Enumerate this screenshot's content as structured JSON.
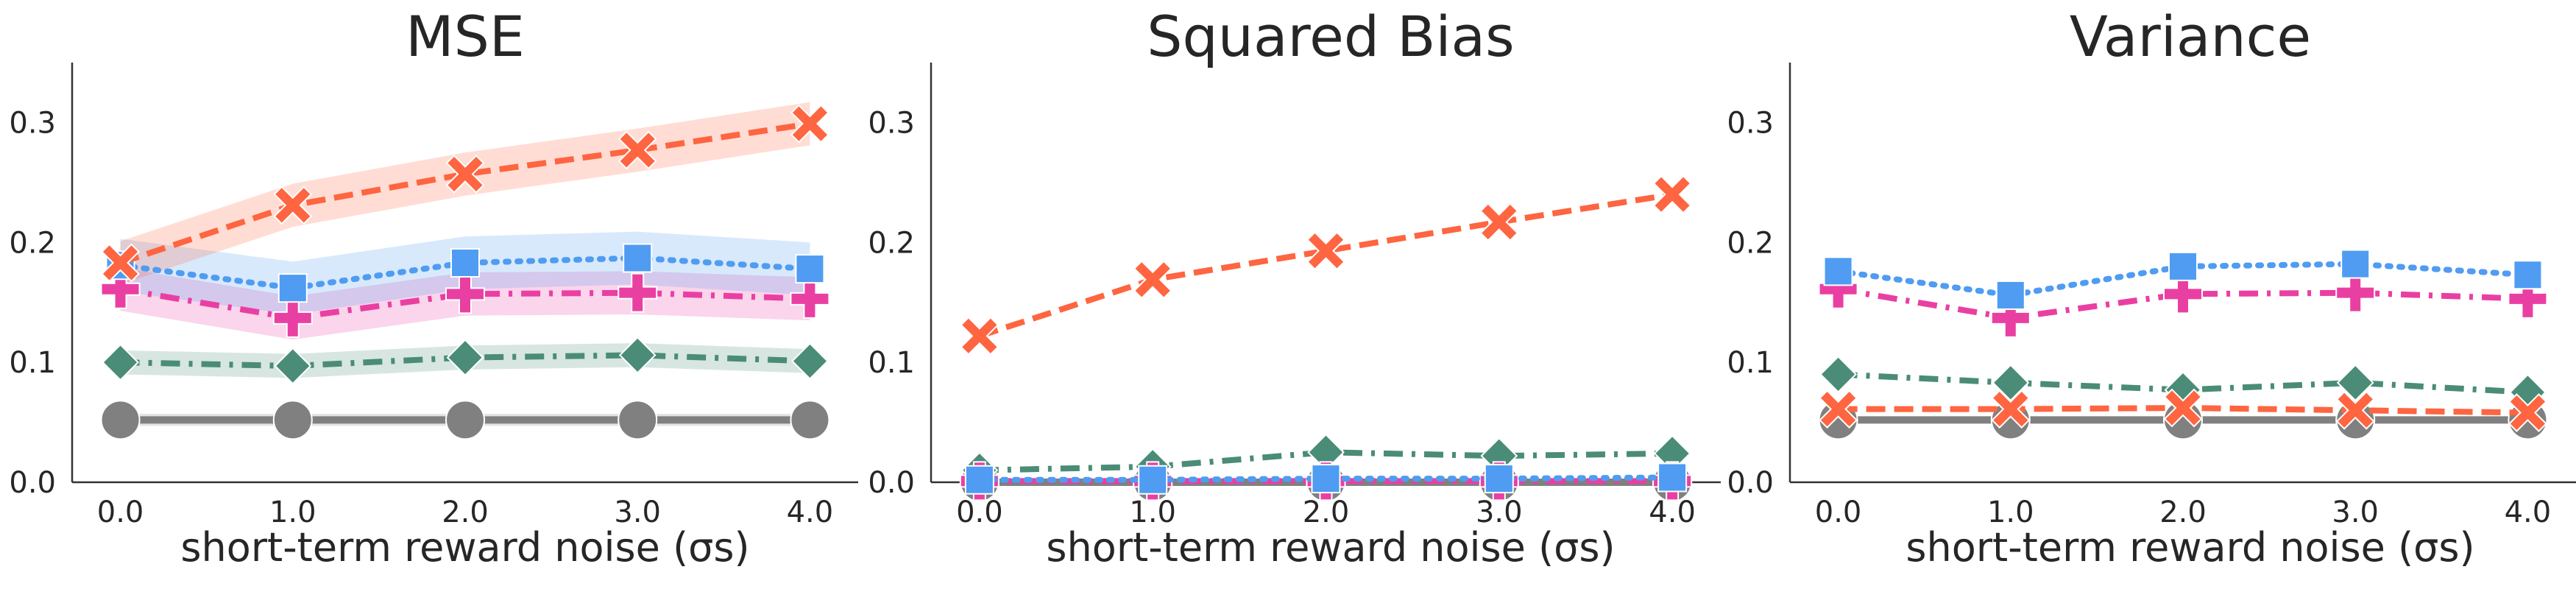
{
  "colors": {
    "gray": "#808080",
    "green": "#4a8c77",
    "magenta": "#ea3fa2",
    "blue": "#4f9cf2",
    "orange": "#fe6540"
  },
  "chart_data": [
    {
      "type": "line",
      "title": "MSE",
      "xlabel": "short-term reward noise (σs)",
      "ylabel": "",
      "x": [
        0.0,
        1.0,
        2.0,
        3.0,
        4.0
      ],
      "x_tick_labels": [
        "0.0",
        "1.0",
        "2.0",
        "3.0",
        "4.0"
      ],
      "ylim": [
        0,
        0.35
      ],
      "y_ticks": [
        0.0,
        0.1,
        0.2,
        0.3
      ],
      "y_tick_labels": [
        "0.0",
        "0.1",
        "0.2",
        "0.3"
      ],
      "grid": false,
      "series": [
        {
          "style": "solid",
          "marker": "circle",
          "color": "gray",
          "values": [
            0.052,
            0.052,
            0.052,
            0.052,
            0.052
          ],
          "band": 0.005
        },
        {
          "style": "dashdot",
          "marker": "diamond",
          "color": "green",
          "values": [
            0.1,
            0.097,
            0.104,
            0.106,
            0.101
          ],
          "band": 0.01
        },
        {
          "style": "dashdot",
          "marker": "plus",
          "color": "magenta",
          "values": [
            0.161,
            0.137,
            0.157,
            0.158,
            0.153
          ],
          "band": 0.018
        },
        {
          "style": "dotted",
          "marker": "square",
          "color": "blue",
          "values": [
            0.181,
            0.162,
            0.183,
            0.187,
            0.178
          ],
          "band": 0.022
        },
        {
          "style": "dashed",
          "marker": "x",
          "color": "orange",
          "values": [
            0.183,
            0.231,
            0.257,
            0.277,
            0.299
          ],
          "band": 0.018
        }
      ]
    },
    {
      "type": "line",
      "title": "Squared Bias",
      "xlabel": "short-term reward noise (σs)",
      "ylabel": "",
      "x": [
        0.0,
        1.0,
        2.0,
        3.0,
        4.0
      ],
      "x_tick_labels": [
        "0.0",
        "1.0",
        "2.0",
        "3.0",
        "4.0"
      ],
      "ylim": [
        0,
        0.35
      ],
      "y_ticks": [
        0.0,
        0.1,
        0.2,
        0.3
      ],
      "y_tick_labels": [
        "0.0",
        "0.1",
        "0.2",
        "0.3"
      ],
      "grid": false,
      "series": [
        {
          "style": "solid",
          "marker": "circle",
          "color": "gray",
          "values": [
            0.0,
            0.0,
            0.0,
            0.0,
            0.0
          ],
          "band": 0
        },
        {
          "style": "dashdot",
          "marker": "plus",
          "color": "magenta",
          "values": [
            0.001,
            0.001,
            0.001,
            0.001,
            0.001
          ],
          "band": 0
        },
        {
          "style": "dotted",
          "marker": "square",
          "color": "blue",
          "values": [
            0.002,
            0.002,
            0.003,
            0.003,
            0.004
          ],
          "band": 0
        },
        {
          "style": "dashdot",
          "marker": "diamond",
          "color": "green",
          "values": [
            0.01,
            0.013,
            0.025,
            0.022,
            0.024
          ],
          "band": 0
        },
        {
          "style": "dashed",
          "marker": "x",
          "color": "orange",
          "values": [
            0.122,
            0.169,
            0.193,
            0.217,
            0.24
          ],
          "band": 0
        }
      ]
    },
    {
      "type": "line",
      "title": "Variance",
      "xlabel": "short-term reward noise (σs)",
      "ylabel": "",
      "x": [
        0.0,
        1.0,
        2.0,
        3.0,
        4.0
      ],
      "x_tick_labels": [
        "0.0",
        "1.0",
        "2.0",
        "3.0",
        "4.0"
      ],
      "ylim": [
        0,
        0.35
      ],
      "y_ticks": [
        0.0,
        0.1,
        0.2,
        0.3
      ],
      "y_tick_labels": [
        "0.0",
        "0.1",
        "0.2",
        "0.3"
      ],
      "grid": false,
      "series": [
        {
          "style": "solid",
          "marker": "circle",
          "color": "gray",
          "values": [
            0.052,
            0.052,
            0.052,
            0.052,
            0.052
          ],
          "band": 0
        },
        {
          "style": "dashed",
          "marker": "x",
          "color": "orange",
          "values": [
            0.061,
            0.061,
            0.062,
            0.06,
            0.058
          ],
          "band": 0
        },
        {
          "style": "dashdot",
          "marker": "diamond",
          "color": "green",
          "values": [
            0.09,
            0.083,
            0.077,
            0.083,
            0.075
          ],
          "band": 0
        },
        {
          "style": "dashdot",
          "marker": "plus",
          "color": "magenta",
          "values": [
            0.161,
            0.137,
            0.157,
            0.158,
            0.153
          ],
          "band": 0
        },
        {
          "style": "dotted",
          "marker": "square",
          "color": "blue",
          "values": [
            0.176,
            0.156,
            0.18,
            0.182,
            0.173
          ],
          "band": 0
        }
      ]
    }
  ]
}
